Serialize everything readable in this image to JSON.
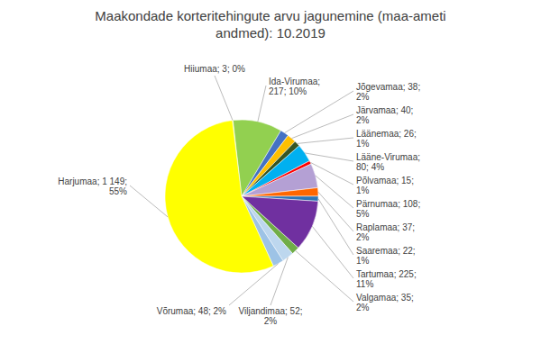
{
  "chart_data": {
    "type": "pie",
    "title": "Maakondade korteritehingute arvu jagunemine (maa-ameti\nandmed): 10.2019",
    "categories": [
      "Hiiumaa; 3; 0%",
      "Ida-Virumaa;\n217; 10%",
      "Jõgevamaa; 38;\n2%",
      "Järvamaa; 40;\n2%",
      "Läänemaa; 26;\n1%",
      "Lääne-Virumaa;\n80; 4%",
      "Põlvamaa; 15;\n1%",
      "Pärnumaa; 108;\n5%",
      "Raplamaa; 37;\n2%",
      "Saaremaa; 22;\n1%",
      "Tartumaa; 225;\n11%",
      "Valgamaa; 35;\n2%",
      "Viljandimaa; 52;\n2%",
      "Võrumaa; 48; 2%",
      "Harjumaa; 1 149;\n55%"
    ],
    "values": [
      3,
      217,
      38,
      40,
      26,
      80,
      15,
      108,
      37,
      22,
      225,
      35,
      52,
      48,
      1149
    ],
    "colors": [
      "#FFFFAA",
      "#92D050",
      "#4472C4",
      "#FFC000",
      "#375623",
      "#00B0F0",
      "#FF0000",
      "#B4A0D4",
      "#FF6600",
      "#2E75B6",
      "#7030A0",
      "#70AD47",
      "#BDD7EE",
      "#9DC3E6",
      "#FFFF00"
    ]
  }
}
